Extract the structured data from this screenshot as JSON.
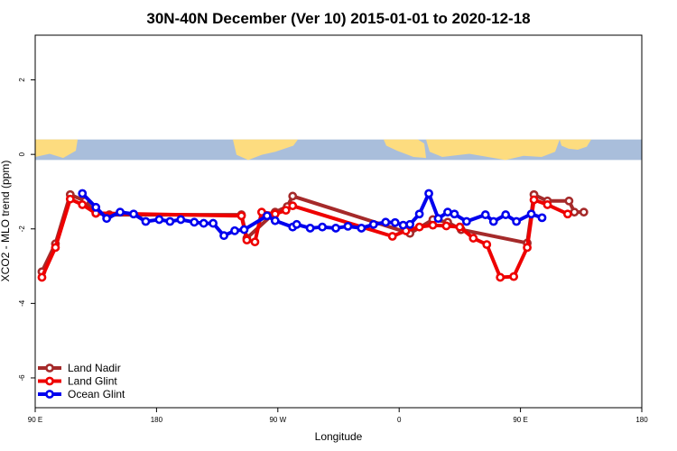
{
  "chart_data": {
    "type": "line",
    "title": "30N-40N December (Ver 10)   2015-01-01 to 2020-12-18",
    "xlabel": "Longitude",
    "ylabel": "XCO2 - MLO trend (ppm)",
    "x_axis_display": "longitude from 90 E eastward through 180, 90 W, 0, 90 E to 180 (shifted axis range 90 to 540)",
    "xlim": [
      90,
      540
    ],
    "ylim": [
      -6.8,
      3.2
    ],
    "x_ticks": [
      {
        "value": 90,
        "label": "90 E"
      },
      {
        "value": 180,
        "label": "180"
      },
      {
        "value": 270,
        "label": "90 W"
      },
      {
        "value": 360,
        "label": "0"
      },
      {
        "value": 450,
        "label": "90 E"
      },
      {
        "value": 540,
        "label": "180"
      }
    ],
    "y_ticks": [
      {
        "value": 2,
        "label": "2"
      },
      {
        "value": 0,
        "label": "0"
      },
      {
        "value": -2,
        "label": "-2"
      },
      {
        "value": -4,
        "label": "-4"
      },
      {
        "value": -6,
        "label": "-6"
      }
    ],
    "grid": false,
    "legend_position": "bottom-left",
    "map_strip": {
      "ymin": -0.15,
      "ymax": 0.4,
      "ocean_color": "#a9bedb",
      "land_color": "#fddc7f"
    },
    "series": [
      {
        "name": "Land Nadir",
        "color": "#a52a2a",
        "x": [
          95,
          105,
          116,
          127,
          135,
          145,
          243,
          247,
          268,
          277,
          281,
          368,
          385,
          396,
          406,
          455,
          460,
          470,
          486,
          490,
          497
        ],
        "y": [
          -3.15,
          -2.4,
          -1.08,
          -1.25,
          -1.58,
          -1.62,
          -1.62,
          -2.25,
          -1.55,
          -1.4,
          -1.12,
          -2.12,
          -1.75,
          -1.82,
          -2.02,
          -2.38,
          -1.08,
          -1.25,
          -1.25,
          -1.55,
          -1.55
        ]
      },
      {
        "name": "Land Glint",
        "color": "#ee0000",
        "x": [
          95,
          105,
          116,
          125,
          135,
          243,
          247,
          253,
          258,
          268,
          276,
          281,
          355,
          365,
          375,
          385,
          395,
          405,
          415,
          425,
          435,
          445,
          455,
          460,
          470,
          485
        ],
        "y": [
          -3.3,
          -2.5,
          -1.2,
          -1.35,
          -1.58,
          -1.65,
          -2.3,
          -2.35,
          -1.55,
          -1.6,
          -1.5,
          -1.38,
          -2.2,
          -2.05,
          -1.95,
          -1.9,
          -1.92,
          -1.95,
          -2.25,
          -2.42,
          -3.3,
          -3.28,
          -2.5,
          -1.22,
          -1.35,
          -1.6
        ]
      },
      {
        "name": "Ocean Glint",
        "color": "#0000ee",
        "x": [
          125,
          135,
          143,
          153,
          163,
          172,
          182,
          190,
          198,
          208,
          215,
          222,
          230,
          238,
          245,
          262,
          268,
          281,
          284,
          294,
          303,
          313,
          322,
          332,
          341,
          350,
          357,
          363,
          368,
          375,
          382,
          389,
          396,
          401,
          410,
          424,
          430,
          439,
          447,
          458,
          466
        ],
        "y": [
          -1.05,
          -1.42,
          -1.72,
          -1.55,
          -1.6,
          -1.8,
          -1.75,
          -1.8,
          -1.75,
          -1.82,
          -1.85,
          -1.85,
          -2.18,
          -2.05,
          -2.02,
          -1.65,
          -1.78,
          -1.95,
          -1.88,
          -1.98,
          -1.95,
          -1.98,
          -1.93,
          -1.98,
          -1.88,
          -1.82,
          -1.83,
          -1.9,
          -1.88,
          -1.6,
          -1.05,
          -1.72,
          -1.55,
          -1.6,
          -1.8,
          -1.62,
          -1.8,
          -1.62,
          -1.8,
          -1.6,
          -1.7
        ]
      }
    ]
  }
}
